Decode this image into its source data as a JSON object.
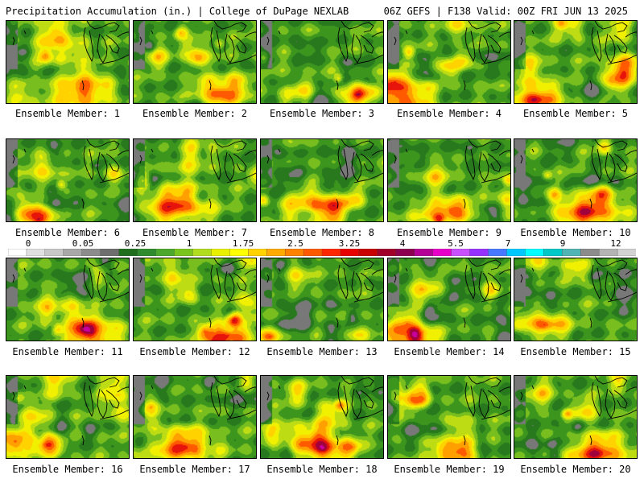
{
  "header": {
    "left_title": "Precipitation Accumulation (in.) | College of DuPage NEXLAB",
    "right_title": "06Z GEFS | F138 Valid: 00Z FRI JUN 13 2025"
  },
  "colorbar": {
    "labels": [
      "0",
      "0.05",
      "0.25",
      "1",
      "1.75",
      "2.5",
      "3.25",
      "4",
      "5.5",
      "7",
      "9",
      "12"
    ],
    "colors": [
      "#ffffff",
      "#e0e0e0",
      "#c8c8c8",
      "#a8a8a8",
      "#8c8c8c",
      "#6e6e6e",
      "#1e6e1e",
      "#2e8b2e",
      "#4ca82c",
      "#7ac41e",
      "#b2dc1e",
      "#e8f000",
      "#ffff00",
      "#ffd200",
      "#ffaa00",
      "#ff8200",
      "#ff5a00",
      "#ff2800",
      "#e60000",
      "#c80000",
      "#a0002a",
      "#8c0050",
      "#b40096",
      "#e600c8",
      "#c850ff",
      "#9632ff",
      "#4878ff",
      "#00c8ff",
      "#00ffff",
      "#00c8c8",
      "#50b4b4",
      "#8c8c8c",
      "#b4b4b4",
      "#d2d2d2"
    ]
  },
  "panels": [
    {
      "label": "Ensemble Member: 1"
    },
    {
      "label": "Ensemble Member: 2"
    },
    {
      "label": "Ensemble Member: 3"
    },
    {
      "label": "Ensemble Member: 4"
    },
    {
      "label": "Ensemble Member: 5"
    },
    {
      "label": "Ensemble Member: 6"
    },
    {
      "label": "Ensemble Member: 7"
    },
    {
      "label": "Ensemble Member: 8"
    },
    {
      "label": "Ensemble Member: 9"
    },
    {
      "label": "Ensemble Member: 10"
    },
    {
      "label": "Ensemble Member: 11"
    },
    {
      "label": "Ensemble Member: 12"
    },
    {
      "label": "Ensemble Member: 13"
    },
    {
      "label": "Ensemble Member: 14"
    },
    {
      "label": "Ensemble Member: 15"
    },
    {
      "label": "Ensemble Member: 16"
    },
    {
      "label": "Ensemble Member: 17"
    },
    {
      "label": "Ensemble Member: 18"
    },
    {
      "label": "Ensemble Member: 19"
    },
    {
      "label": "Ensemble Member: 20"
    }
  ]
}
